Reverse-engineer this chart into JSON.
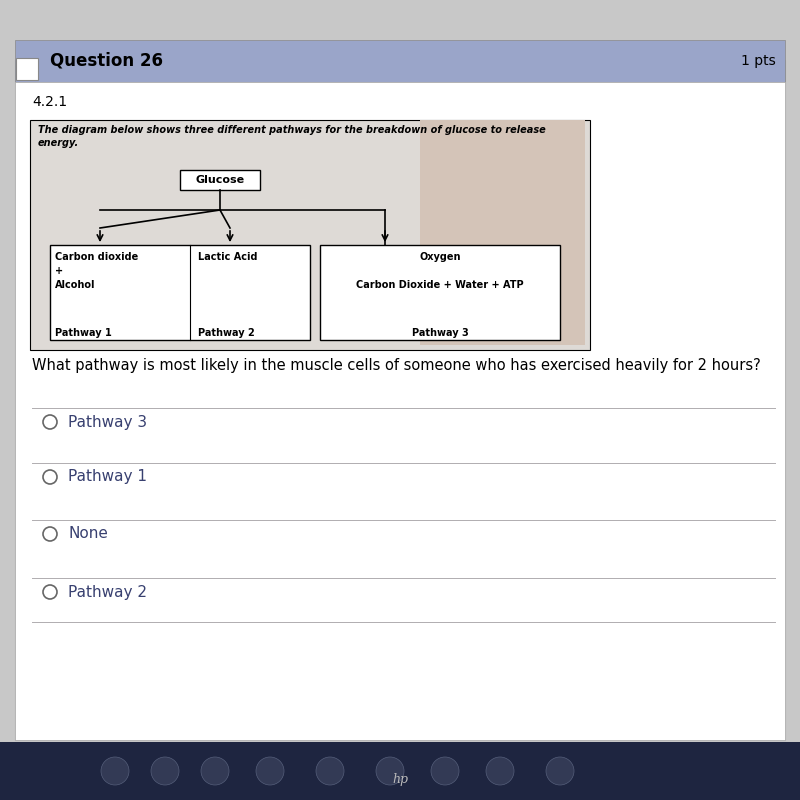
{
  "title_header": "Question 26",
  "pts": "1 pts",
  "section": "4.2.1",
  "description_line1": "The diagram below shows three different pathways for the breakdown of glucose to release",
  "description_line2": "energy.",
  "glucose_label": "Glucose",
  "question": "What pathway is most likely in the muscle cells of someone who has exercised heavily for 2 hours?",
  "options": [
    "Pathway 3",
    "Pathway 1",
    "None",
    "Pathway 2"
  ],
  "bg_outer": "#c8c8c8",
  "bg_main": "#e8e6e3",
  "header_bg": "#9aa5c9",
  "white": "#ffffff",
  "black": "#000000",
  "diag_box_bg": "#dedad6",
  "tan_patch": "#d4c4b8",
  "option_text_color": "#384070",
  "separator_color": "#b0adb0",
  "taskbar_color": "#1e2540",
  "taskbar_icon_color": "#cccccc"
}
